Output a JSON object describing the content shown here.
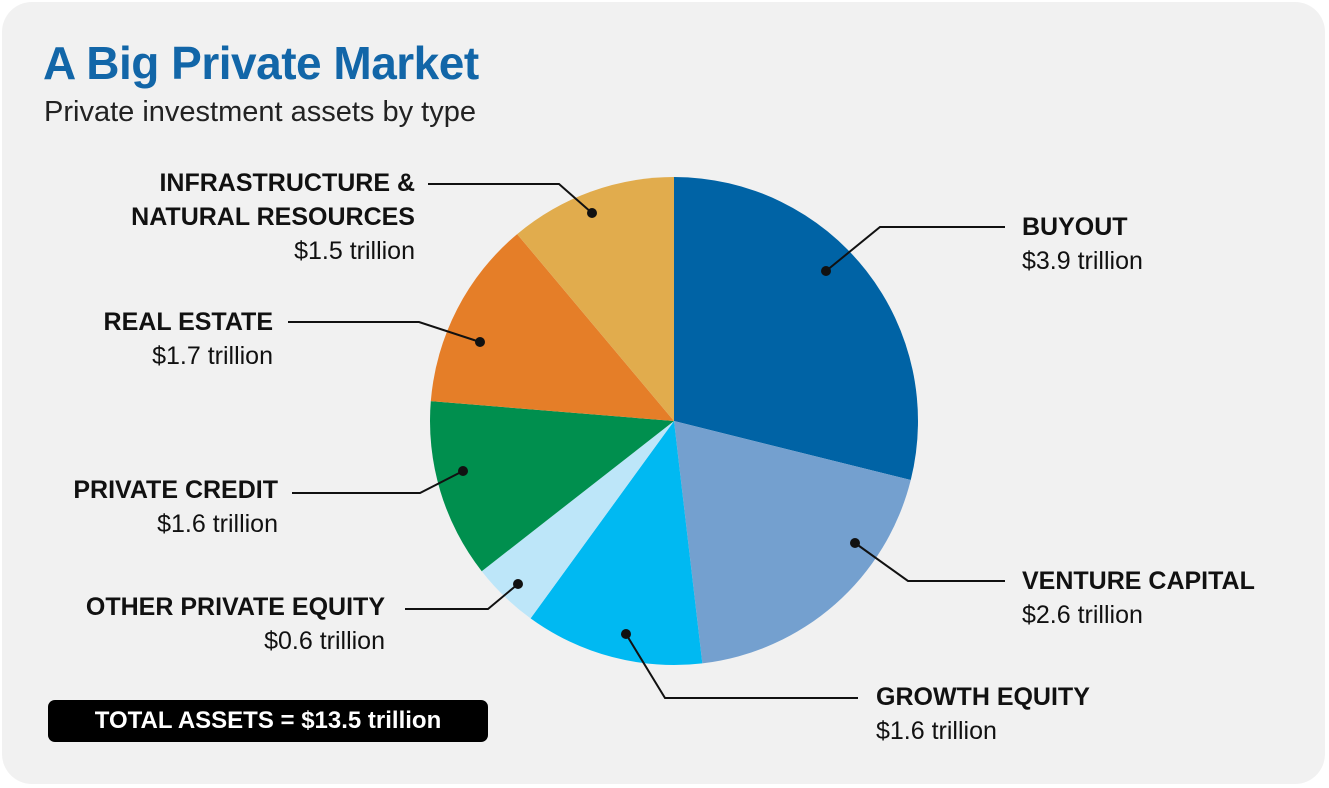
{
  "title": "A Big Private Market",
  "subtitle": "Private investment assets by type",
  "total": "TOTAL ASSETS = $13.5 trillion",
  "chart_data": {
    "type": "pie",
    "title": "A Big Private Market",
    "subtitle": "Private investment assets by type",
    "unit": "trillion",
    "slices": [
      {
        "name_lines": [
          "BUYOUT"
        ],
        "value": 3.9,
        "value_label": "$3.9 trillion",
        "color": "#0063a5"
      },
      {
        "name_lines": [
          "VENTURE CAPITAL"
        ],
        "value": 2.6,
        "value_label": "$2.6 trillion",
        "color": "#74a0cf"
      },
      {
        "name_lines": [
          "GROWTH EQUITY"
        ],
        "value": 1.6,
        "value_label": "$1.6 trillion",
        "color": "#00b9f2"
      },
      {
        "name_lines": [
          "OTHER PRIVATE EQUITY"
        ],
        "value": 0.6,
        "value_label": "$0.6 trillion",
        "color": "#bde6f9"
      },
      {
        "name_lines": [
          "PRIVATE CREDIT"
        ],
        "value": 1.6,
        "value_label": "$1.6 trillion",
        "color": "#008f4e"
      },
      {
        "name_lines": [
          "REAL ESTATE"
        ],
        "value": 1.7,
        "value_label": "$1.7 trillion",
        "color": "#e57e28"
      },
      {
        "name_lines": [
          "INFRASTRUCTURE &",
          "NATURAL RESOURCES"
        ],
        "value": 1.5,
        "value_label": "$1.5 trillion",
        "color": "#e1ac4d"
      }
    ],
    "start": "12 o'clock",
    "direction": "clockwise",
    "total": 13.5,
    "total_label": "TOTAL ASSETS = $13.5 trillion"
  }
}
